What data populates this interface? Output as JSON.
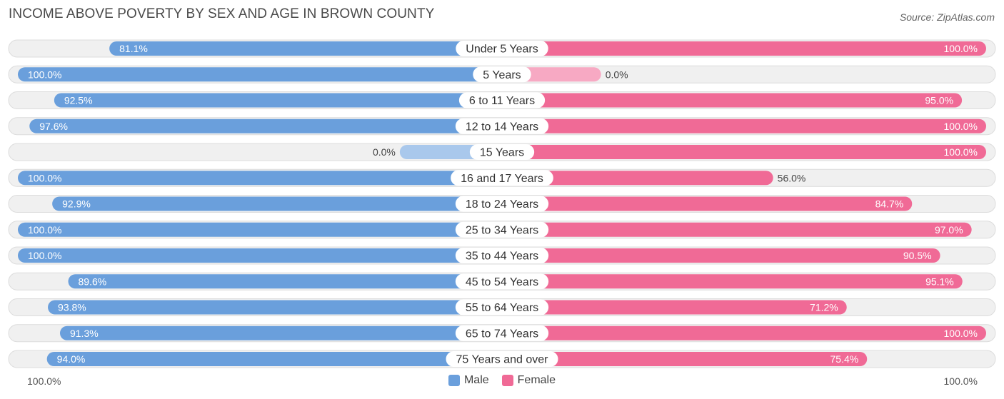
{
  "header": {
    "title": "INCOME ABOVE POVERTY BY SEX AND AGE IN BROWN COUNTY",
    "source": "Source: ZipAtlas.com"
  },
  "colors": {
    "male": "#6a9fdc",
    "male_light": "#a9c8ec",
    "female": "#f06a96",
    "female_light": "#f7a9c3",
    "track": "#f0f0f0",
    "track_border": "#dcdcdc"
  },
  "chart_data": {
    "type": "bar",
    "orientation": "horizontal-diverging",
    "title": "INCOME ABOVE POVERTY BY SEX AND AGE IN BROWN COUNTY",
    "categories": [
      "Under 5 Years",
      "5 Years",
      "6 to 11 Years",
      "12 to 14 Years",
      "15 Years",
      "16 and 17 Years",
      "18 to 24 Years",
      "25 to 34 Years",
      "35 to 44 Years",
      "45 to 54 Years",
      "55 to 64 Years",
      "65 to 74 Years",
      "75 Years and over"
    ],
    "series": [
      {
        "name": "Male",
        "values": [
          81.1,
          100.0,
          92.5,
          97.6,
          0.0,
          100.0,
          92.9,
          100.0,
          100.0,
          89.6,
          93.8,
          91.3,
          94.0
        ],
        "labels": [
          "81.1%",
          "100.0%",
          "92.5%",
          "97.6%",
          "0.0%",
          "100.0%",
          "92.9%",
          "100.0%",
          "100.0%",
          "89.6%",
          "93.8%",
          "91.3%",
          "94.0%"
        ]
      },
      {
        "name": "Female",
        "values": [
          100.0,
          0.0,
          95.0,
          100.0,
          100.0,
          56.0,
          84.7,
          97.0,
          90.5,
          95.1,
          71.2,
          100.0,
          75.4
        ],
        "labels": [
          "100.0%",
          "0.0%",
          "95.0%",
          "100.0%",
          "100.0%",
          "56.0%",
          "84.7%",
          "97.0%",
          "90.5%",
          "95.1%",
          "71.2%",
          "100.0%",
          "75.4%"
        ]
      }
    ],
    "xlim": [
      0,
      100
    ],
    "axis_left_label": "100.0%",
    "axis_right_label": "100.0%",
    "legend": [
      "Male",
      "Female"
    ],
    "legend_position": "bottom-center"
  }
}
